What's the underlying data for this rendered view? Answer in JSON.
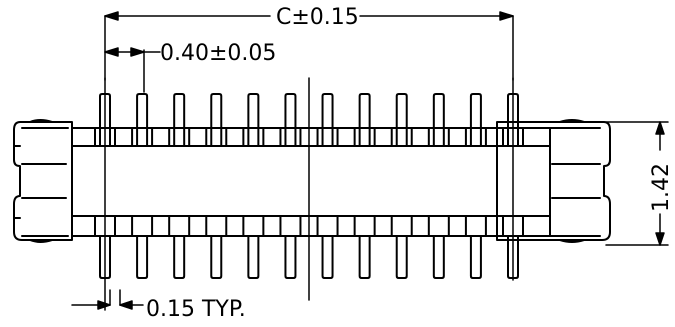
{
  "dimensions": {
    "overall_pitch": "C±0.15",
    "pitch": "0.40±0.05",
    "pin_width": "0.15 TYP.",
    "height": "1.42"
  },
  "pins": {
    "count_per_row": 12
  }
}
